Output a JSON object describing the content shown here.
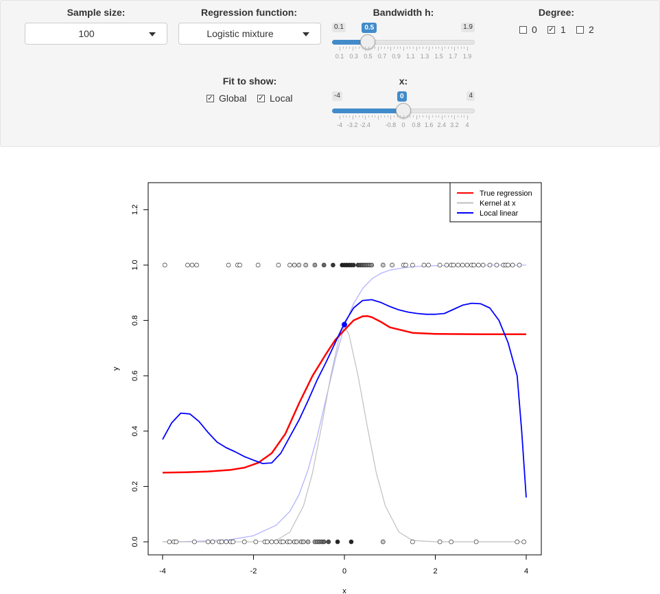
{
  "controls": {
    "sample_size": {
      "label": "Sample size:",
      "value": "100"
    },
    "regression_function": {
      "label": "Regression function:",
      "value": "Logistic mixture"
    },
    "bandwidth": {
      "label": "Bandwidth h:",
      "min": "0.1",
      "max": "1.9",
      "value": "0.5",
      "fraction": 0.2222,
      "ticks": [
        "0.1",
        "0.3",
        "0.5",
        "0.7",
        "0.9",
        "1.1",
        "1.3",
        "1.5",
        "1.7",
        "1.9"
      ]
    },
    "degree": {
      "label": "Degree:",
      "options": [
        {
          "label": "0",
          "checked": false
        },
        {
          "label": "1",
          "checked": true
        },
        {
          "label": "2",
          "checked": false
        }
      ]
    },
    "fit_to_show": {
      "label": "Fit to show:",
      "options": [
        {
          "label": "Global",
          "checked": true
        },
        {
          "label": "Local",
          "checked": true
        }
      ]
    },
    "x_slider": {
      "label": "x:",
      "min": "-4",
      "max": "4",
      "value": "0",
      "fraction": 0.5,
      "ticks": [
        "-4",
        "-3.2",
        "-2.4",
        "-0.8",
        "0",
        "0.8",
        "1.6",
        "2.4",
        "3.2",
        "4"
      ],
      "tick_values": [
        -4,
        -3.2,
        -2.4,
        -0.8,
        0,
        0.8,
        1.6,
        2.4,
        3.2,
        4
      ]
    }
  },
  "chart_data": {
    "type": "scatter",
    "xlabel": "x",
    "ylabel": "y",
    "xlim": [
      -4,
      4
    ],
    "ylim": [
      0,
      1.28
    ],
    "x_ticks": [
      "-4",
      "-2",
      "0",
      "2",
      "4"
    ],
    "x_tick_values": [
      -4,
      -2,
      0,
      2,
      4
    ],
    "y_ticks": [
      "0.0",
      "0.2",
      "0.4",
      "0.6",
      "0.8",
      "1.0",
      "1.2"
    ],
    "y_tick_values": [
      0,
      0.2,
      0.4,
      0.6,
      0.8,
      1.0,
      1.2
    ],
    "legend": {
      "position": "top-right",
      "entries": [
        {
          "name": "True regression",
          "color": "#ff0000"
        },
        {
          "name": "Kernel at x",
          "color": "#bebebe"
        },
        {
          "name": "Local linear",
          "color": "#0000ff"
        }
      ]
    },
    "points_y1_x": [
      -3.95,
      -3.45,
      -3.35,
      -3.25,
      -2.55,
      -2.35,
      -2.3,
      -1.9,
      -1.45,
      -1.2,
      -1.1,
      -1.0,
      -0.85,
      -0.65,
      -0.45,
      -0.25,
      -0.05,
      0.0,
      0.05,
      0.1,
      0.15,
      0.2,
      0.3,
      0.35,
      0.4,
      0.45,
      0.5,
      0.55,
      0.6,
      0.85,
      1.05,
      1.3,
      1.35,
      1.5,
      1.75,
      1.85,
      2.1,
      2.25,
      2.35,
      2.4,
      2.5,
      2.6,
      2.7,
      2.8,
      2.85,
      2.95,
      3.05,
      3.2,
      3.35,
      3.5,
      3.55,
      3.6,
      3.7,
      3.85
    ],
    "points_y0_x": [
      -3.85,
      -3.75,
      -3.7,
      -3.3,
      -3.0,
      -2.9,
      -2.75,
      -2.7,
      -2.6,
      -2.5,
      -2.45,
      -2.2,
      -1.95,
      -1.75,
      -1.7,
      -1.6,
      -1.5,
      -1.4,
      -1.35,
      -1.25,
      -1.2,
      -1.1,
      -1.05,
      -0.95,
      -0.9,
      -0.8,
      -0.65,
      -0.6,
      -0.55,
      -0.5,
      -0.45,
      -0.35,
      -0.15,
      0.15,
      0.85,
      1.5,
      2.1,
      2.35,
      2.9,
      3.8,
      3.95
    ],
    "local_point": {
      "x": 0,
      "y": 0.785
    },
    "series": [
      {
        "name": "True regression",
        "color": "#ff0000",
        "width": 2.5,
        "x": [
          -4,
          -3.5,
          -3,
          -2.5,
          -2.2,
          -1.9,
          -1.6,
          -1.3,
          -1.0,
          -0.7,
          -0.4,
          -0.2,
          0,
          0.2,
          0.4,
          0.5,
          0.6,
          0.8,
          1.0,
          1.5,
          2,
          3,
          4
        ],
        "y": [
          0.25,
          0.251,
          0.254,
          0.26,
          0.268,
          0.285,
          0.32,
          0.39,
          0.5,
          0.6,
          0.68,
          0.73,
          0.765,
          0.8,
          0.815,
          0.816,
          0.812,
          0.795,
          0.775,
          0.755,
          0.751,
          0.75,
          0.75
        ]
      },
      {
        "name": "Kernel at x",
        "color": "#bebebe",
        "width": 1.2,
        "x": [
          -4,
          -2,
          -1.5,
          -1.2,
          -0.9,
          -0.7,
          -0.5,
          -0.3,
          -0.1,
          0,
          0.1,
          0.3,
          0.5,
          0.7,
          0.9,
          1.2,
          1.5,
          2,
          4
        ],
        "y": [
          0,
          0,
          0.005,
          0.035,
          0.13,
          0.25,
          0.42,
          0.6,
          0.75,
          0.78,
          0.75,
          0.6,
          0.42,
          0.25,
          0.13,
          0.035,
          0.005,
          0,
          0
        ]
      },
      {
        "name": "Local linear",
        "color": "#0000ff",
        "width": 1.8,
        "x": [
          -4,
          -3.8,
          -3.6,
          -3.4,
          -3.2,
          -3.0,
          -2.8,
          -2.6,
          -2.4,
          -2.2,
          -2.0,
          -1.8,
          -1.6,
          -1.4,
          -1.2,
          -1.0,
          -0.8,
          -0.6,
          -0.4,
          -0.2,
          0,
          0.2,
          0.4,
          0.6,
          0.8,
          1.0,
          1.2,
          1.4,
          1.6,
          1.8,
          2.0,
          2.2,
          2.4,
          2.6,
          2.8,
          3.0,
          3.2,
          3.4,
          3.6,
          3.8,
          3.9,
          4.0
        ],
        "y": [
          0.37,
          0.43,
          0.465,
          0.462,
          0.435,
          0.395,
          0.36,
          0.34,
          0.325,
          0.308,
          0.295,
          0.283,
          0.285,
          0.32,
          0.38,
          0.44,
          0.51,
          0.585,
          0.65,
          0.72,
          0.79,
          0.845,
          0.872,
          0.875,
          0.865,
          0.85,
          0.838,
          0.83,
          0.825,
          0.822,
          0.822,
          0.825,
          0.84,
          0.855,
          0.862,
          0.86,
          0.845,
          0.8,
          0.72,
          0.6,
          0.4,
          0.16
        ]
      },
      {
        "name": "Global fit",
        "color": "#b3b3ff",
        "width": 1.3,
        "x": [
          -4,
          -3.5,
          -3,
          -2.5,
          -2,
          -1.5,
          -1.2,
          -1.0,
          -0.8,
          -0.6,
          -0.4,
          -0.2,
          0,
          0.2,
          0.4,
          0.6,
          0.8,
          1.0,
          1.3,
          1.6,
          2,
          2.5,
          3,
          4
        ],
        "y": [
          0.0,
          0.001,
          0.003,
          0.008,
          0.022,
          0.06,
          0.11,
          0.17,
          0.26,
          0.38,
          0.52,
          0.66,
          0.78,
          0.86,
          0.915,
          0.95,
          0.97,
          0.982,
          0.99,
          0.995,
          0.998,
          0.999,
          1.0,
          1.0
        ]
      }
    ]
  }
}
